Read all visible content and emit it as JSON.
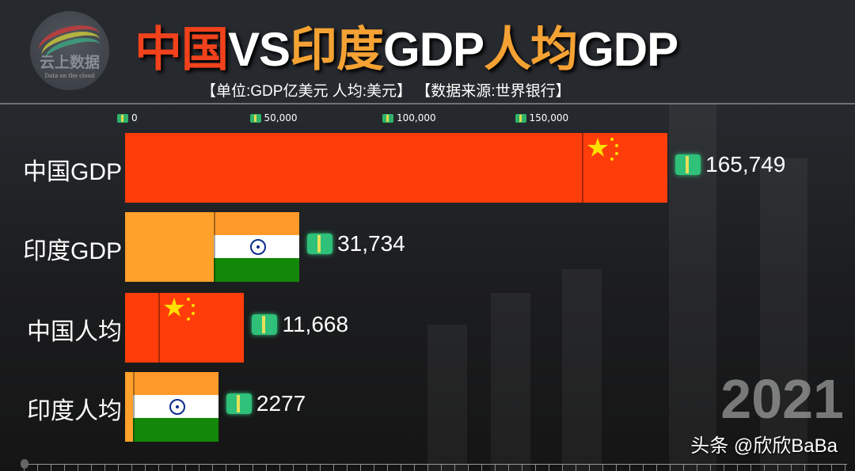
{
  "header": {
    "logo_text": "云上数据",
    "logo_subtext": "Data on the cloud",
    "title_parts": [
      {
        "text": "中国",
        "color": "#f0421c"
      },
      {
        "text": "VS",
        "color": "#ffffff"
      },
      {
        "text": "印度",
        "color": "#f5a234"
      },
      {
        "text": "GDP",
        "color": "#ffffff"
      },
      {
        "text": "人均",
        "color": "#f5a234"
      },
      {
        "text": "GDP",
        "color": "#ffffff"
      }
    ],
    "subtitle": "【单位:GDP亿美元 人均:美元】 【数据来源:世界银行】"
  },
  "chart_data": {
    "type": "bar",
    "orientation": "horizontal",
    "categories": [
      "中国GDP",
      "印度GDP",
      "中国人均",
      "印度人均"
    ],
    "values": [
      165749,
      31734,
      11668,
      2277
    ],
    "value_labels": [
      "165,749",
      "31,734",
      "11,668",
      "2277"
    ],
    "colors": [
      "#ff3d0a",
      "#ffa12a",
      "#ff3d0a",
      "#ffa12a"
    ],
    "flags": [
      "china",
      "india",
      "china",
      "india"
    ],
    "x_ticks": [
      0,
      50000,
      100000,
      150000
    ],
    "x_tick_labels": [
      "0",
      "50,000",
      "100,000",
      "150,000"
    ],
    "axis_position": "top",
    "year": "2021"
  },
  "watermark": "头条 @欣欣BaBa"
}
